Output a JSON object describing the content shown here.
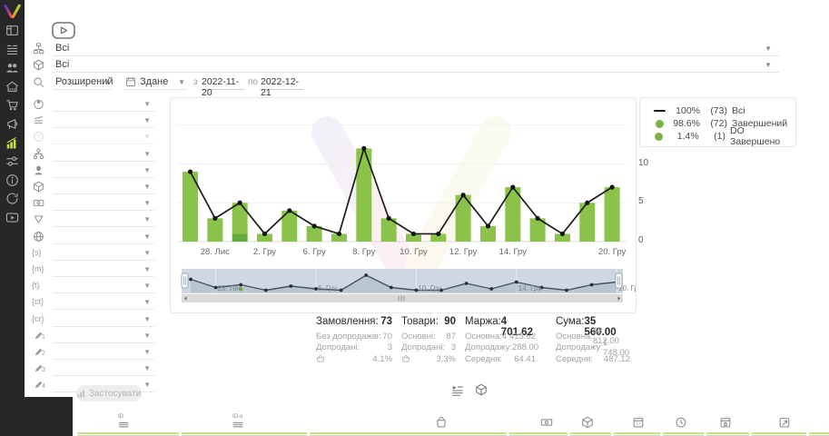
{
  "header": {
    "source_filter": {
      "value": "Всі"
    },
    "category_filter": {
      "value": "Всі"
    },
    "search_mode": {
      "value": "Розширений"
    },
    "date_type": {
      "value": "Здане"
    },
    "date_from_label": "з",
    "date_from": "2022-11-20",
    "date_to_label": "по",
    "date_to": "2022-12-21"
  },
  "sidebar": {
    "items": [
      {
        "name": "dashboard"
      },
      {
        "name": "orders"
      },
      {
        "name": "customers"
      },
      {
        "name": "company"
      },
      {
        "name": "cart"
      },
      {
        "name": "campaigns"
      },
      {
        "name": "analytics",
        "active": true
      },
      {
        "name": "settings"
      },
      {
        "name": "info"
      },
      {
        "name": "history"
      },
      {
        "name": "video"
      }
    ]
  },
  "filters": {
    "rows": [
      {
        "icon": "globe-pin"
      },
      {
        "icon": "layers"
      },
      {
        "icon": "question",
        "disabled": true
      },
      {
        "icon": "sitemap"
      },
      {
        "icon": "person"
      },
      {
        "icon": "cube"
      },
      {
        "icon": "banknote"
      },
      {
        "icon": "funnel"
      },
      {
        "icon": "globe"
      },
      {
        "icon": "brace",
        "text": "{s}"
      },
      {
        "icon": "brace",
        "text": "{m}"
      },
      {
        "icon": "brace",
        "text": "{t}"
      },
      {
        "icon": "brace",
        "text": "{ct}"
      },
      {
        "icon": "brace",
        "text": "{cr}"
      },
      {
        "icon": "pencil",
        "sub": "1"
      },
      {
        "icon": "pencil",
        "sub": "2"
      },
      {
        "icon": "pencil",
        "sub": "3"
      },
      {
        "icon": "pencil",
        "sub": "4"
      }
    ],
    "apply_label": "Застосувати"
  },
  "chart_data": {
    "type": "bar",
    "title": "",
    "xlabel": "",
    "ylabel": "",
    "ylim": [
      0,
      16.5
    ],
    "yticks": [
      0,
      5,
      10
    ],
    "x_tick_labels": [
      {
        "index": 1,
        "label": "28. Лис"
      },
      {
        "index": 3,
        "label": "2. Гру"
      },
      {
        "index": 5,
        "label": "6. Гру"
      },
      {
        "index": 7,
        "label": "8. Гру"
      },
      {
        "index": 9,
        "label": "10. Гру"
      },
      {
        "index": 11,
        "label": "12. Гру"
      },
      {
        "index": 13,
        "label": "14. Гру"
      },
      {
        "index": 17,
        "label": "20. Гру"
      }
    ],
    "series": [
      {
        "name": "Всі",
        "type": "line",
        "color": "#1b1b1b",
        "values": [
          9,
          3,
          5,
          1,
          4,
          2,
          1,
          12,
          3,
          1,
          1,
          6,
          2,
          7,
          3,
          1,
          5,
          7
        ]
      },
      {
        "name": "Завершений",
        "type": "bar",
        "color": "#8bc34a",
        "values": [
          9,
          3,
          4,
          1,
          4,
          2,
          1,
          12,
          3,
          1,
          1,
          6,
          2,
          7,
          3,
          1,
          5,
          7
        ]
      },
      {
        "name": "DO Завершено",
        "type": "bar",
        "color": "#63a93c",
        "values": [
          0,
          0,
          1,
          0,
          0,
          0,
          0,
          0,
          0,
          0,
          0,
          0,
          0,
          0,
          0,
          0,
          0,
          0
        ]
      }
    ],
    "legend": [
      {
        "marker": "line",
        "color": "#1b1b1b",
        "pct": "100%",
        "count": "(73)",
        "label": "Всі"
      },
      {
        "marker": "dot",
        "color": "#7cb342",
        "pct": "98.6%",
        "count": "(72)",
        "label": "Завершений"
      },
      {
        "marker": "dot",
        "color": "#7cb342",
        "pct": "1.4%",
        "count": "(1)",
        "label": "DO Завершено"
      }
    ],
    "navigator_labels": [
      {
        "index": 1,
        "label": "28. Лис"
      },
      {
        "index": 5,
        "label": "6. Гру"
      },
      {
        "index": 9,
        "label": "10. Гру"
      },
      {
        "index": 13,
        "label": "14. Гру"
      },
      {
        "index": 17,
        "label": "20. Гру"
      }
    ]
  },
  "stats": {
    "columns": [
      {
        "title": "Замовлення:",
        "value": "73",
        "rows": [
          {
            "label": "Без допродажів:",
            "value": "70"
          },
          {
            "label": "Допродані:",
            "value": "3"
          },
          {
            "icon": "basket",
            "label": "",
            "value": "4.1%"
          }
        ]
      },
      {
        "title": "Товари:",
        "value": "90",
        "rows": [
          {
            "label": "Основні:",
            "value": "87"
          },
          {
            "label": "Допродані:",
            "value": "3"
          },
          {
            "icon": "basket",
            "label": "",
            "value": "3.3%"
          }
        ]
      },
      {
        "title": "Маржа:",
        "value": "4 701.62",
        "rows": [
          {
            "label": "Основна:",
            "value": "4 413.62"
          },
          {
            "label": "Допродажу:",
            "value": "288.00"
          },
          {
            "label": "Середня:",
            "value": "64.41"
          }
        ]
      },
      {
        "title": "Сума:",
        "value": "35 560.00",
        "rows": [
          {
            "label": "Основна:",
            "value": "33 812.00"
          },
          {
            "label": "Допродажу:",
            "value": "1 748.00"
          },
          {
            "label": "Середня:",
            "value": "487.12"
          }
        ]
      }
    ]
  },
  "view_toggles": [
    {
      "icon": "list-stats"
    },
    {
      "icon": "cube"
    }
  ],
  "footer": {
    "columns": [
      {
        "icon": "id-lines",
        "text": "ID"
      },
      {
        "icon": "id-lines",
        "text": "ID-o"
      },
      {
        "icon": "bag",
        "text": ""
      },
      {
        "icon": "money",
        "text": ""
      },
      {
        "icon": "cube",
        "text": ""
      },
      {
        "icon": "calendar-17",
        "text": ""
      },
      {
        "icon": "clock",
        "text": ""
      },
      {
        "icon": "calendar-bag",
        "text": ""
      },
      {
        "icon": "calendar-up",
        "text": ""
      }
    ]
  }
}
